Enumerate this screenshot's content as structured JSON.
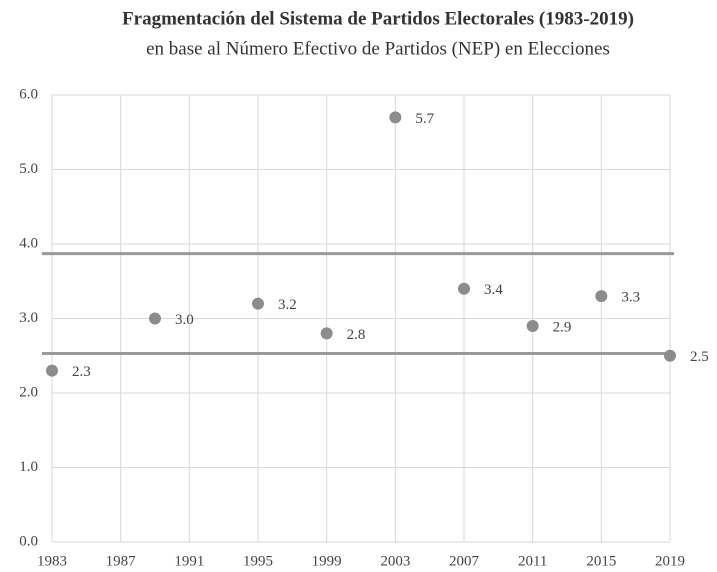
{
  "chart_data": {
    "type": "scatter",
    "title": "Fragmentación del Sistema de Partidos Electorales (1983-2019)",
    "subtitle": "en base al Número Efectivo de Partidos (NEP) en Elecciones",
    "x": [
      1983,
      1989,
      1995,
      1999,
      2003,
      2007,
      2011,
      2015,
      2019
    ],
    "values": [
      2.3,
      3.0,
      3.2,
      2.8,
      5.7,
      3.4,
      2.9,
      3.3,
      2.5
    ],
    "value_labels": [
      "2.3",
      "3.0",
      "3.2",
      "2.8",
      "5.7",
      "3.4",
      "2.9",
      "3.3",
      "2.5"
    ],
    "color": "#8c8c8c",
    "reference_lines": [
      3.87,
      2.53
    ],
    "reference_color": "#999999",
    "xlim": [
      1983,
      2019
    ],
    "xticks": [
      1983,
      1987,
      1991,
      1995,
      1999,
      2003,
      2007,
      2011,
      2015,
      2019
    ],
    "ylim": [
      0,
      6
    ],
    "yticks": [
      {
        "value": 0,
        "label": "0.0"
      },
      {
        "value": 1,
        "label": "1.0"
      },
      {
        "value": 2,
        "label": "2.0"
      },
      {
        "value": 3,
        "label": "3.0"
      },
      {
        "value": 4,
        "label": "4.0"
      },
      {
        "value": 5,
        "label": "5.0"
      },
      {
        "value": 6,
        "label": "6.0"
      }
    ],
    "grid": true
  }
}
